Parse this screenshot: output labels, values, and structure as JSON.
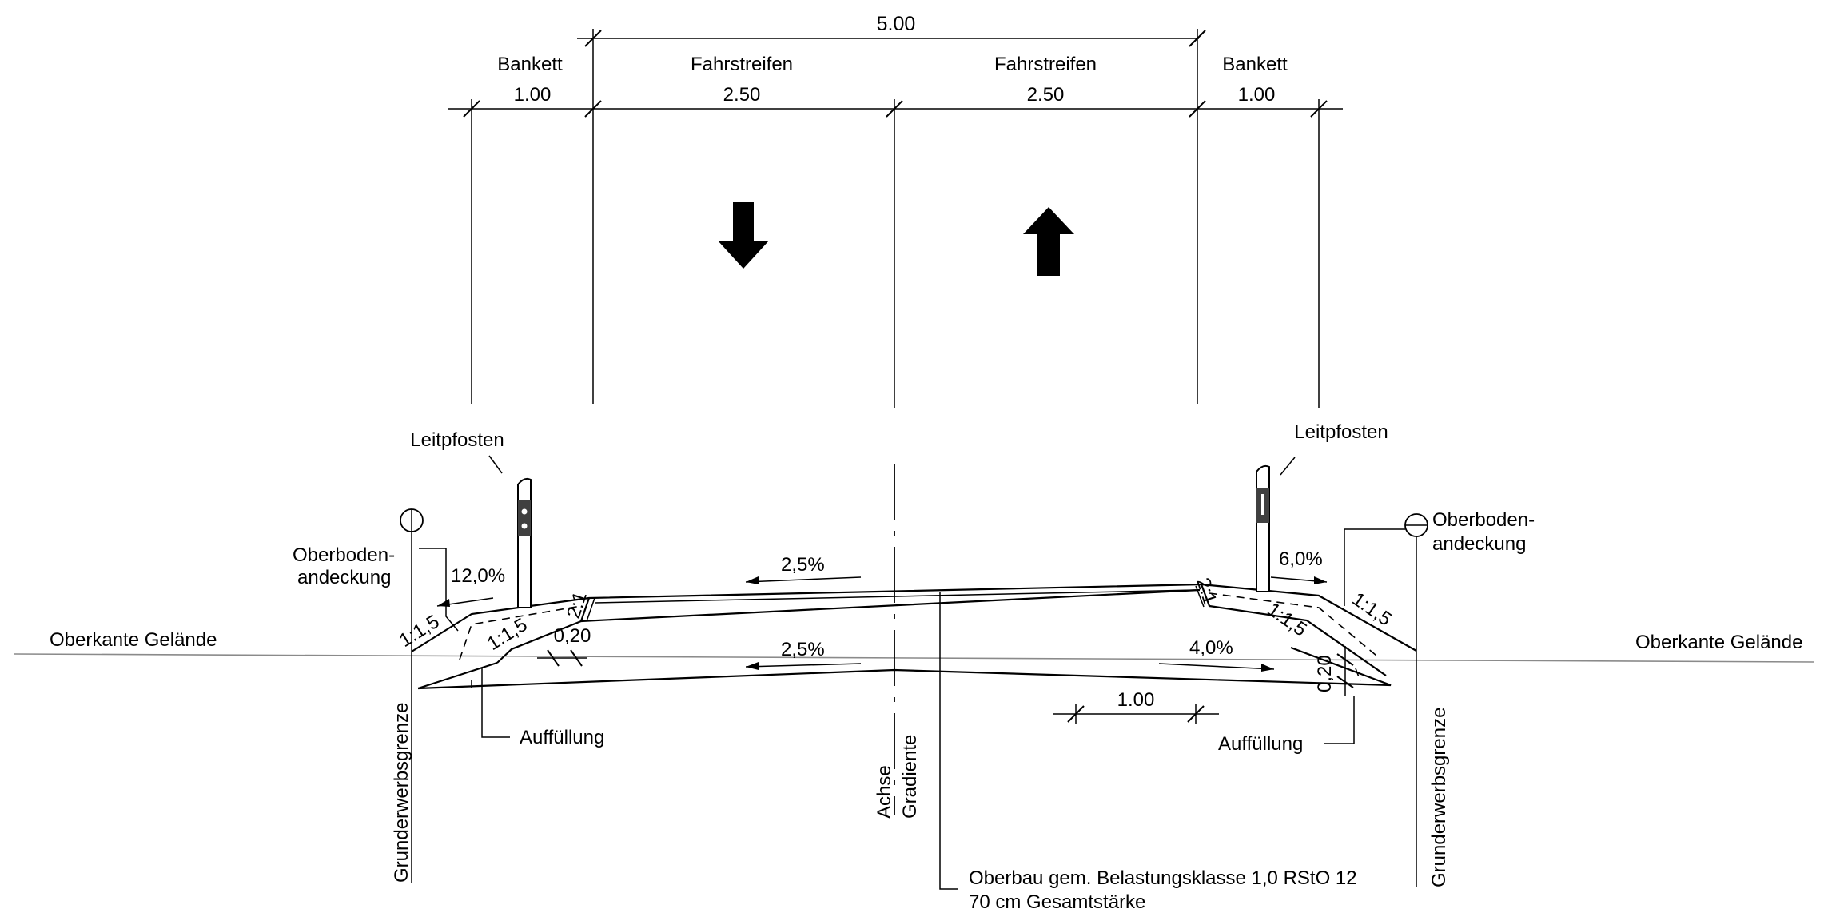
{
  "dimensions": {
    "total": "5.00",
    "bankett_left": "1.00",
    "lane_left": "2.50",
    "lane_right": "2.50",
    "bankett_right": "1.00",
    "offset_bottom": "1.00",
    "thickness_left": "0,20",
    "thickness_right": "0,20"
  },
  "labels": {
    "bankett_left": "Bankett",
    "bankett_right": "Bankett",
    "lane_left": "Fahrstreifen",
    "lane_right": "Fahrstreifen",
    "leitpfosten_left": "Leitpfosten",
    "leitpfosten_right": "Leitpfosten",
    "oberboden_left_1": "Oberboden-",
    "oberboden_left_2": "andeckung",
    "oberboden_right_1": "Oberboden-",
    "oberboden_right_2": "andeckung",
    "gelaende_left": "Oberkante Gelände",
    "gelaende_right": "Oberkante Gelände",
    "grunderwerb_left": "Grunderwerbsgrenze",
    "grunderwerb_right": "Grunderwerbsgrenze",
    "auffuellung_left": "Auffüllung",
    "auffuellung_right": "Auffüllung",
    "achse": "Achse",
    "gradiente": "Gradiente",
    "oberbau_1": "Oberbau gem. Belastungsklasse 1,0 RStO 12",
    "oberbau_2": "70 cm Gesamtstärke"
  },
  "slopes": {
    "bankett_left": "12,0%",
    "bankett_right": "6,0%",
    "surface": "2,5%",
    "formation_left": "2,5%",
    "formation_right": "4,0%",
    "embankment_left_outer": "1:1,5",
    "embankment_left_inner": "1:1,5",
    "embankment_right_inner": "1:1,5",
    "embankment_right_outer": "1:1,5",
    "edge_left": "2:1",
    "edge_right": "2:1"
  },
  "arrows": {
    "lane_left_direction": "down",
    "lane_right_direction": "up"
  }
}
